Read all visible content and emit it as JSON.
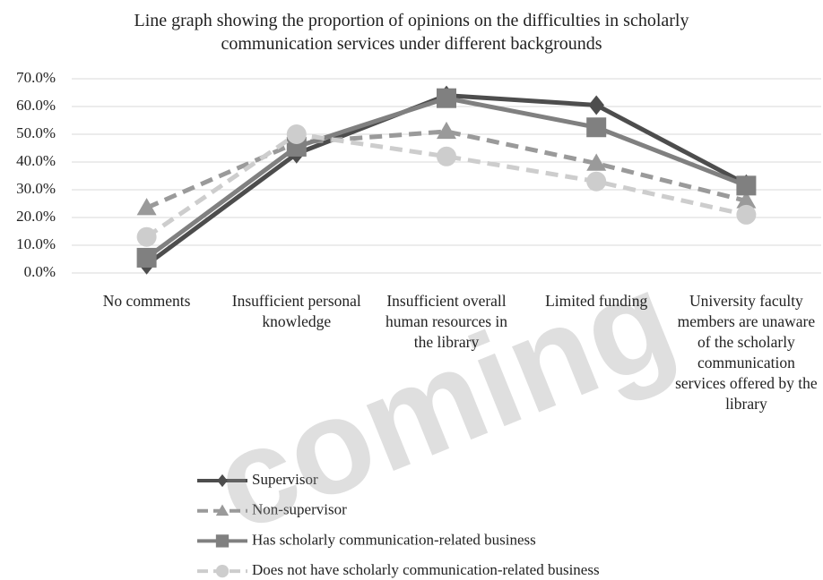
{
  "chart_data": {
    "type": "line",
    "title": "Line graph showing the proportion of opinions on the difficulties in scholarly communication services under different backgrounds",
    "categories": [
      "No comments",
      "Insufficient personal knowledge",
      "Insufficient overall human resources in the library",
      "Limited funding",
      "University faculty members are unaware of the scholarly communication services offered by the library"
    ],
    "series": [
      {
        "name": "Supervisor",
        "color": "#4d4d4d",
        "marker": "diamond",
        "dashed": false,
        "values": [
          3,
          43,
          64,
          60.5,
          32
        ]
      },
      {
        "name": "Non-supervisor",
        "color": "#9a9a9a",
        "marker": "triangle",
        "dashed": true,
        "values": [
          23.5,
          47,
          51,
          39.5,
          26
        ]
      },
      {
        "name": "Has scholarly communication-related business",
        "color": "#808080",
        "marker": "square",
        "dashed": false,
        "values": [
          5.5,
          45.5,
          63,
          52.5,
          31.5
        ]
      },
      {
        "name": "Does not have scholarly communication-related business",
        "color": "#cdcdcd",
        "marker": "circle",
        "dashed": true,
        "values": [
          13,
          50,
          42,
          33,
          21
        ]
      }
    ],
    "ylim": [
      0,
      70
    ],
    "yticks": [
      {
        "value": 0,
        "label": "0.0%"
      },
      {
        "value": 10,
        "label": "10.0%"
      },
      {
        "value": 20,
        "label": "20.0%"
      },
      {
        "value": 30,
        "label": "30.0%"
      },
      {
        "value": 40,
        "label": "40.0%"
      },
      {
        "value": 50,
        "label": "50.0%"
      },
      {
        "value": 60,
        "label": "60.0%"
      },
      {
        "value": 70,
        "label": "70.0%"
      }
    ],
    "grid": true,
    "legend": "bottom",
    "watermark": "coming"
  }
}
